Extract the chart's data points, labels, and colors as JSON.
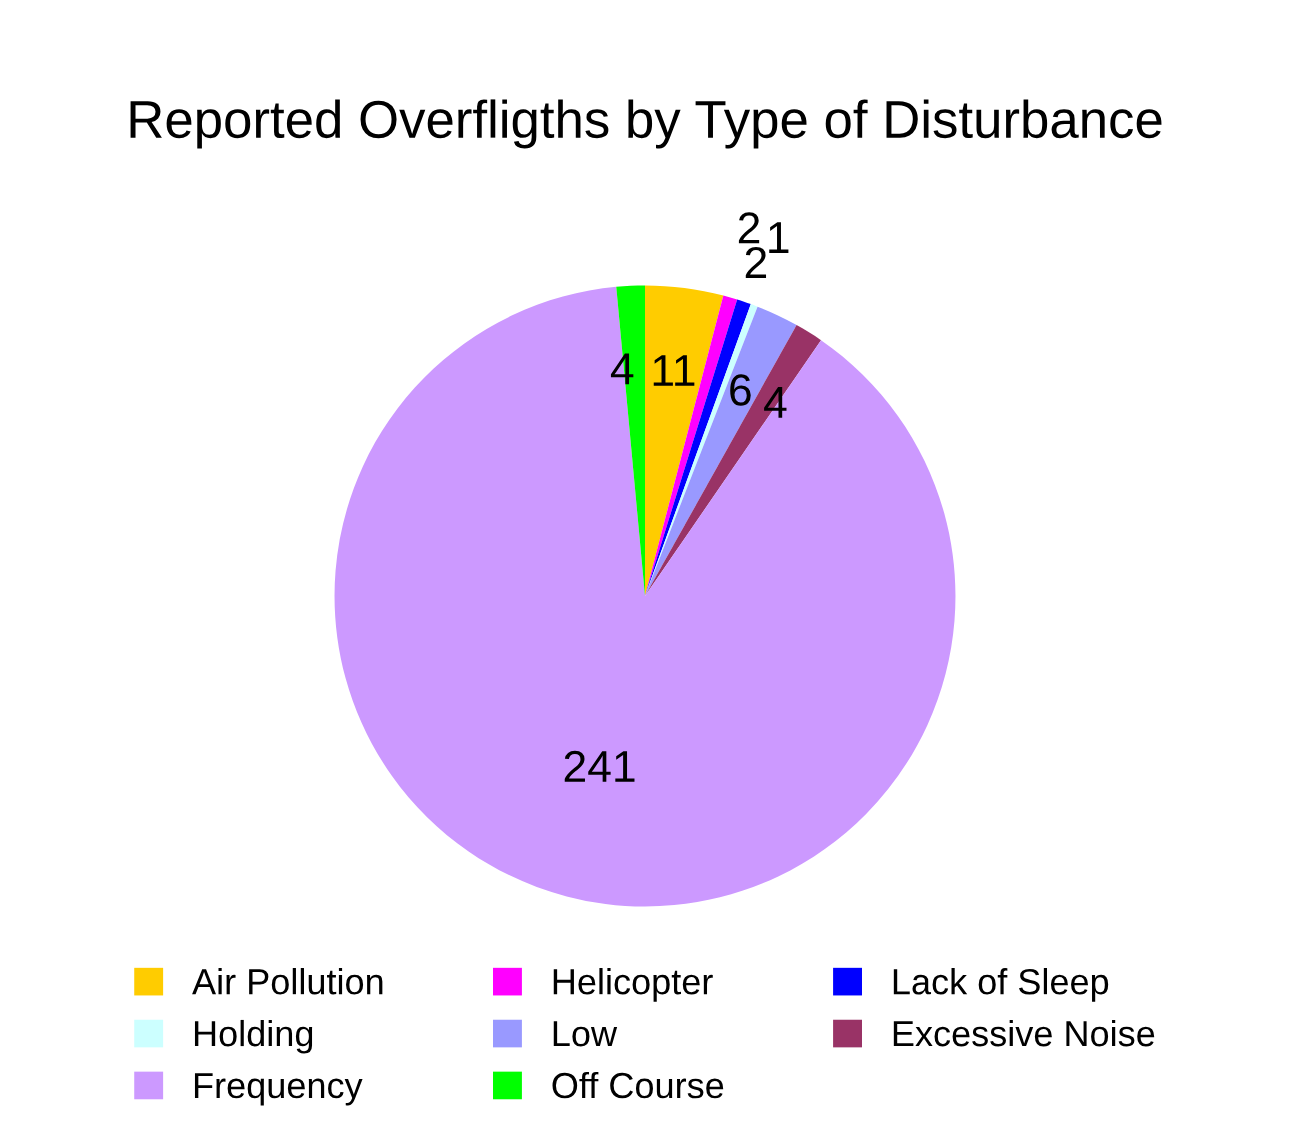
{
  "chart_data": {
    "type": "pie",
    "title": "Reported Overfligths by Type of Disturbance",
    "categories": [
      "Air Pollution",
      "Helicopter",
      "Lack of Sleep",
      "Holding",
      "Low",
      "Excessive Noise",
      "Frequency",
      "Off Course"
    ],
    "values": [
      11,
      2,
      2,
      1,
      6,
      4,
      241,
      4
    ],
    "colors": [
      "#ffcc00",
      "#ff00ff",
      "#0000ff",
      "#ccffff",
      "#9999ff",
      "#993366",
      "#cc99ff",
      "#00ff00"
    ],
    "data_labels": true,
    "legend": "bottom"
  }
}
